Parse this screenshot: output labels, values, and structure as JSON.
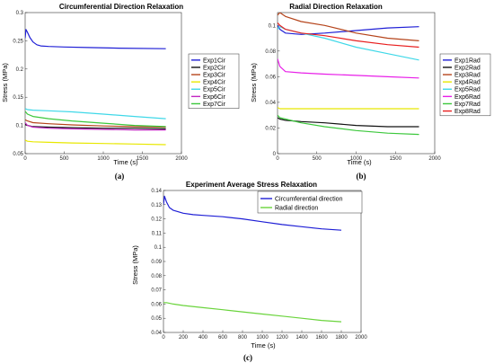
{
  "chart_data": [
    {
      "type": "line",
      "panel": "a",
      "caption": "(a)",
      "title": "Circumferential Direction Relaxation",
      "xlabel": "Time (s)",
      "ylabel": "Stress (MPa)",
      "xlim": [
        0,
        2000
      ],
      "ylim": [
        0.05,
        0.3
      ],
      "xticks": [
        "0",
        "500",
        "1000",
        "1500",
        "2000"
      ],
      "yticks": [
        "0.05",
        "0.1",
        "0.15",
        "0.2",
        "0.25",
        "0.3"
      ],
      "grid": false,
      "legend_position": "right",
      "series": [
        {
          "name": "Exp1Cir",
          "color": "#1f1fd6",
          "x": [
            0,
            10,
            30,
            60,
            100,
            150,
            200,
            300,
            500,
            800,
            1200,
            1800
          ],
          "y": [
            0.255,
            0.27,
            0.265,
            0.256,
            0.248,
            0.243,
            0.241,
            0.24,
            0.239,
            0.238,
            0.237,
            0.236
          ]
        },
        {
          "name": "Exp2Cir",
          "color": "#111111",
          "x": [
            0,
            30,
            100,
            300,
            600,
            1000,
            1400,
            1800
          ],
          "y": [
            0.102,
            0.1,
            0.098,
            0.097,
            0.096,
            0.095,
            0.095,
            0.094
          ]
        },
        {
          "name": "Exp3Cir",
          "color": "#b5441b",
          "x": [
            0,
            30,
            100,
            300,
            600,
            1000,
            1400,
            1800
          ],
          "y": [
            0.11,
            0.108,
            0.105,
            0.103,
            0.101,
            0.099,
            0.098,
            0.097
          ]
        },
        {
          "name": "Exp4Cir",
          "color": "#e8e800",
          "x": [
            0,
            30,
            100,
            300,
            600,
            1000,
            1400,
            1800
          ],
          "y": [
            0.074,
            0.072,
            0.071,
            0.07,
            0.069,
            0.068,
            0.067,
            0.066
          ]
        },
        {
          "name": "Exp5Cir",
          "color": "#3fd8e8",
          "x": [
            0,
            30,
            100,
            300,
            600,
            1000,
            1400,
            1800
          ],
          "y": [
            0.13,
            0.128,
            0.127,
            0.126,
            0.124,
            0.12,
            0.116,
            0.112
          ]
        },
        {
          "name": "Exp6Cir",
          "color": "#c227c2",
          "x": [
            0,
            30,
            100,
            300,
            600,
            1000,
            1400,
            1800
          ],
          "y": [
            0.105,
            0.1,
            0.097,
            0.095,
            0.094,
            0.093,
            0.092,
            0.092
          ]
        },
        {
          "name": "Exp7Cir",
          "color": "#3cc83c",
          "x": [
            0,
            30,
            100,
            300,
            600,
            1000,
            1400,
            1800
          ],
          "y": [
            0.125,
            0.12,
            0.116,
            0.112,
            0.108,
            0.104,
            0.1,
            0.098
          ]
        }
      ]
    },
    {
      "type": "line",
      "panel": "b",
      "caption": "(b)",
      "title": "Radial Direction Relaxation",
      "xlabel": "Time (s)",
      "ylabel": "Stress (MPa)",
      "xlim": [
        0,
        2000
      ],
      "ylim": [
        0,
        0.11
      ],
      "xticks": [
        "0",
        "500",
        "1000",
        "1500",
        "2000"
      ],
      "yticks": [
        "0",
        "0.02",
        "0.04",
        "0.06",
        "0.08",
        "0.1"
      ],
      "grid": false,
      "legend_position": "right",
      "series": [
        {
          "name": "Exp1Rad",
          "color": "#1f1fd6",
          "x": [
            0,
            30,
            100,
            300,
            600,
            1000,
            1400,
            1800
          ],
          "y": [
            0.1,
            0.097,
            0.094,
            0.093,
            0.094,
            0.096,
            0.098,
            0.099
          ]
        },
        {
          "name": "Exp2Rad",
          "color": "#111111",
          "x": [
            0,
            30,
            100,
            300,
            600,
            1000,
            1400,
            1800
          ],
          "y": [
            0.028,
            0.027,
            0.026,
            0.025,
            0.024,
            0.022,
            0.021,
            0.021
          ]
        },
        {
          "name": "Exp3Rad",
          "color": "#b5441b",
          "x": [
            0,
            30,
            100,
            300,
            600,
            1000,
            1400,
            1800
          ],
          "y": [
            0.108,
            0.11,
            0.107,
            0.103,
            0.1,
            0.094,
            0.09,
            0.088
          ]
        },
        {
          "name": "Exp4Rad",
          "color": "#e8e800",
          "x": [
            0,
            30,
            100,
            300,
            600,
            1000,
            1400,
            1800
          ],
          "y": [
            0.036,
            0.035,
            0.035,
            0.035,
            0.035,
            0.035,
            0.035,
            0.035
          ]
        },
        {
          "name": "Exp5Rad",
          "color": "#3fd8e8",
          "x": [
            0,
            30,
            100,
            300,
            600,
            1000,
            1400,
            1800
          ],
          "y": [
            0.097,
            0.099,
            0.097,
            0.094,
            0.09,
            0.083,
            0.078,
            0.073
          ]
        },
        {
          "name": "Exp6Rad",
          "color": "#e81fe8",
          "x": [
            0,
            30,
            100,
            300,
            600,
            1000,
            1400,
            1800
          ],
          "y": [
            0.074,
            0.068,
            0.064,
            0.063,
            0.062,
            0.061,
            0.06,
            0.059
          ]
        },
        {
          "name": "Exp7Rad",
          "color": "#3cc83c",
          "x": [
            0,
            30,
            100,
            300,
            600,
            1000,
            1400,
            1800
          ],
          "y": [
            0.03,
            0.028,
            0.027,
            0.024,
            0.021,
            0.018,
            0.016,
            0.015
          ]
        },
        {
          "name": "Exp8Rad",
          "color": "#e81f1f",
          "x": [
            0,
            30,
            100,
            300,
            600,
            1000,
            1400,
            1800
          ],
          "y": [
            0.102,
            0.1,
            0.097,
            0.094,
            0.092,
            0.088,
            0.085,
            0.083
          ]
        }
      ]
    },
    {
      "type": "line",
      "panel": "c",
      "caption": "(c)",
      "title": "Experiment Average Stress Relaxation",
      "xlabel": "Time (s)",
      "ylabel": "Stress (MPa)",
      "xlim": [
        0,
        2000
      ],
      "ylim": [
        0.04,
        0.14
      ],
      "xticks": [
        "0",
        "200",
        "400",
        "600",
        "800",
        "1000",
        "1200",
        "1400",
        "1600",
        "1800",
        "2000"
      ],
      "yticks": [
        "0.04",
        "0.05",
        "0.06",
        "0.07",
        "0.08",
        "0.09",
        "0.1",
        "0.11",
        "0.12",
        "0.13",
        "0.14"
      ],
      "grid": false,
      "legend_position": "top-right",
      "series": [
        {
          "name": "Circumferential direction",
          "color": "#1f1fd6",
          "x": [
            0,
            10,
            30,
            60,
            100,
            150,
            200,
            300,
            400,
            600,
            800,
            1000,
            1200,
            1400,
            1600,
            1800
          ],
          "y": [
            0.13,
            0.136,
            0.132,
            0.128,
            0.126,
            0.125,
            0.124,
            0.123,
            0.1225,
            0.1215,
            0.12,
            0.118,
            0.116,
            0.1145,
            0.113,
            0.112
          ]
        },
        {
          "name": "Radial direction",
          "color": "#6ad43c",
          "x": [
            0,
            30,
            100,
            200,
            400,
            600,
            800,
            1000,
            1200,
            1400,
            1600,
            1800
          ],
          "y": [
            0.061,
            0.061,
            0.06,
            0.059,
            0.0575,
            0.056,
            0.0545,
            0.053,
            0.0515,
            0.05,
            0.0485,
            0.0475
          ]
        }
      ]
    }
  ]
}
